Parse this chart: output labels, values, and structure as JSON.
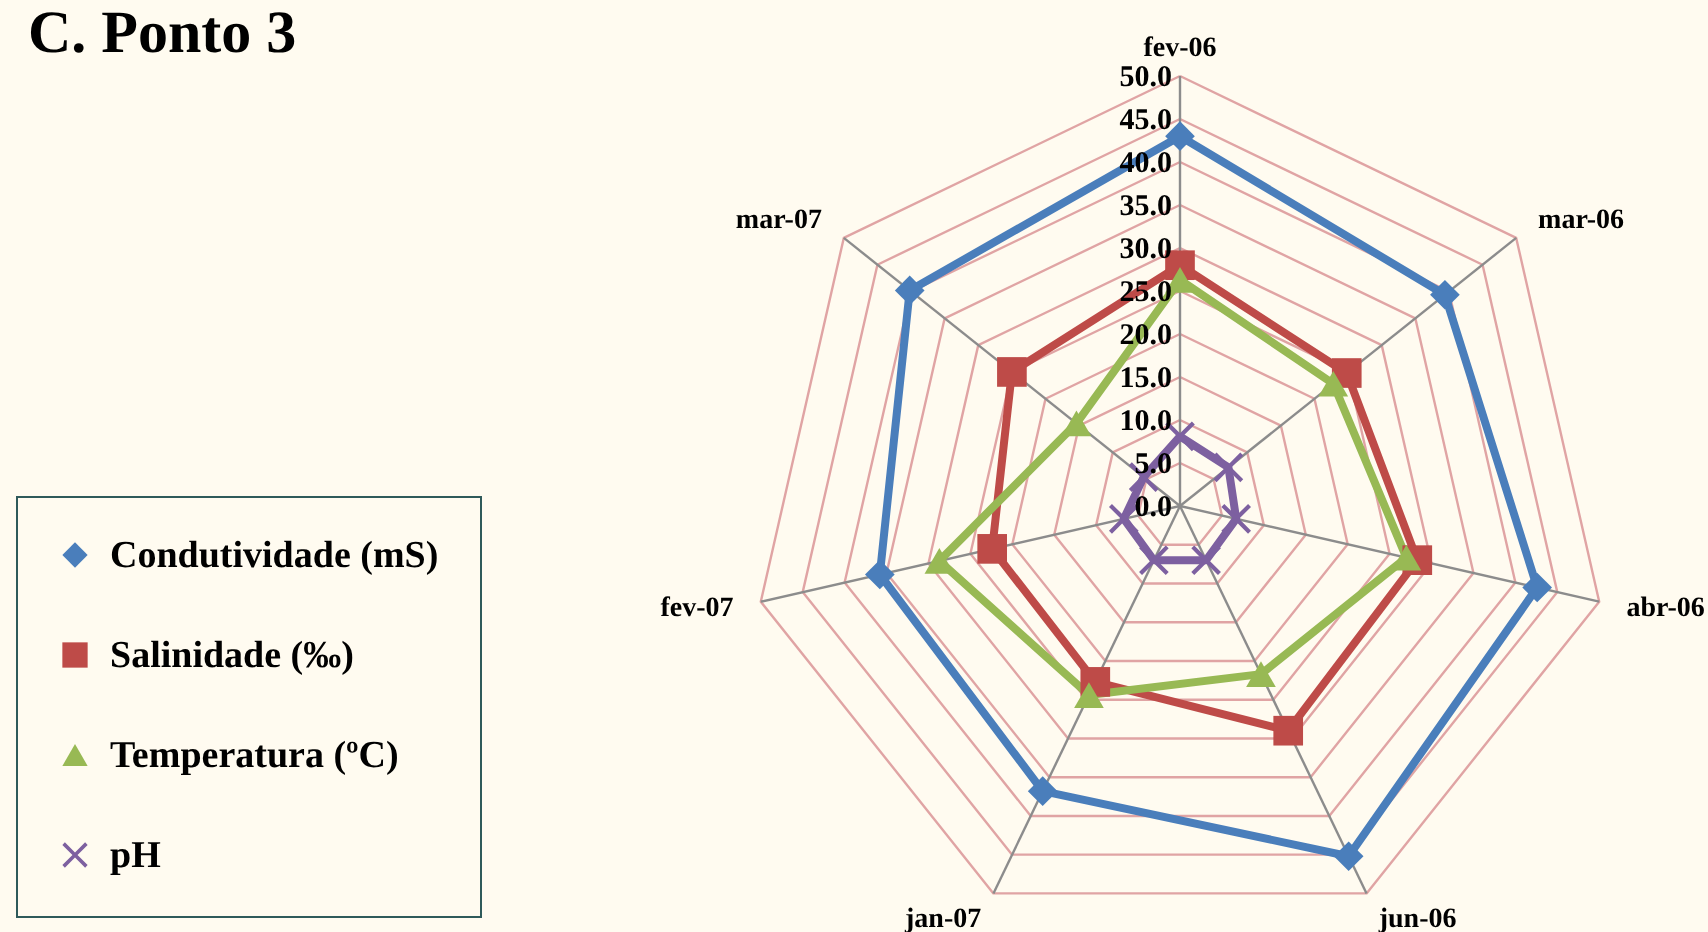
{
  "chart_data": {
    "type": "radar",
    "title": "C. Ponto 3",
    "categories": [
      "fev-06",
      "mar-06",
      "abr-06",
      "jun-06",
      "jan-07",
      "fev-07",
      "mar-07"
    ],
    "series": [
      {
        "name": "Condutividade (mS)",
        "color": "#4a7ebb",
        "marker": "diamond",
        "values": [
          43.0,
          39.4,
          42.6,
          45.2,
          36.8,
          35.8,
          40.2
        ]
      },
      {
        "name": "Salinidade (‰)",
        "color": "#be4b48",
        "marker": "square",
        "values": [
          28.0,
          24.8,
          28.3,
          29.0,
          22.7,
          22.4,
          25.0
        ]
      },
      {
        "name": "Temperatura (ºC)",
        "color": "#98b954",
        "marker": "triangle",
        "values": [
          26.3,
          22.8,
          27.0,
          21.7,
          24.4,
          28.7,
          15.4
        ]
      },
      {
        "name": "pH",
        "color": "#7d60a0",
        "marker": "cross",
        "values": [
          8.1,
          7.2,
          6.7,
          7.0,
          7.0,
          6.7,
          5.4
        ]
      }
    ],
    "ylim": [
      0,
      50
    ],
    "yticks": [
      {
        "value": 0,
        "label": "0.0"
      },
      {
        "value": 5,
        "label": "5.0"
      },
      {
        "value": 10,
        "label": "10.0"
      },
      {
        "value": 15,
        "label": "15.0"
      },
      {
        "value": 20,
        "label": "20.0"
      },
      {
        "value": 25,
        "label": "25.0"
      },
      {
        "value": 30,
        "label": "30.0"
      },
      {
        "value": 35,
        "label": "35.0"
      },
      {
        "value": 40,
        "label": "40.0"
      },
      {
        "value": 45,
        "label": "45.0"
      },
      {
        "value": 50,
        "label": "50.0"
      }
    ],
    "grid": true,
    "legend": "bottom left"
  }
}
